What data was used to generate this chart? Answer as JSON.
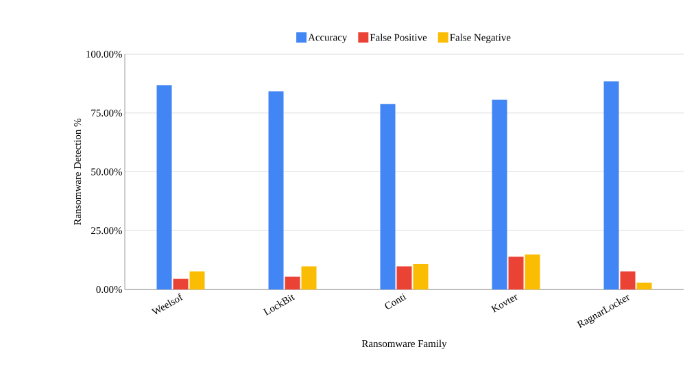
{
  "chart_data": {
    "type": "bar",
    "xlabel": "Ransomware Family",
    "ylabel": "Ransomware Detection %",
    "categories": [
      "Weelsof",
      "LockBit",
      "Conti",
      "Kovter",
      "RagnarLocker"
    ],
    "series": [
      {
        "name": "Accuracy",
        "color": "#4285f4",
        "values": [
          86.8,
          84.2,
          78.8,
          80.6,
          88.5
        ]
      },
      {
        "name": "False Positive",
        "color": "#ea4335",
        "values": [
          4.5,
          5.4,
          9.8,
          13.9,
          7.7
        ]
      },
      {
        "name": "False Negative",
        "color": "#fbbc04",
        "values": [
          7.7,
          9.8,
          10.8,
          14.9,
          2.9
        ]
      }
    ],
    "ylim": [
      0,
      100
    ],
    "yticks": [
      {
        "value": 0,
        "label": "0.00%"
      },
      {
        "value": 25,
        "label": "25.00%"
      },
      {
        "value": 50,
        "label": "50.00%"
      },
      {
        "value": 75,
        "label": "75.00%"
      },
      {
        "value": 100,
        "label": "100.00%"
      }
    ],
    "grid": "y",
    "legend": "top"
  }
}
